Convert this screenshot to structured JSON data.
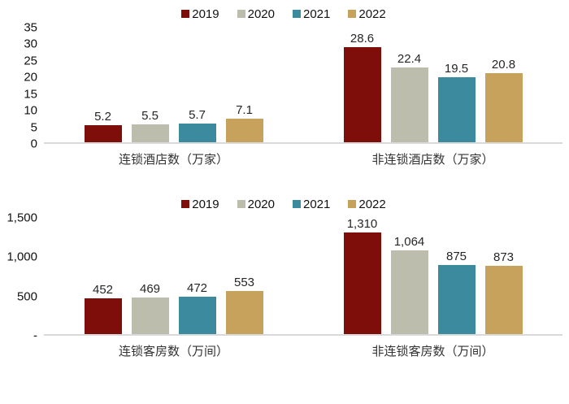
{
  "legend": [
    {
      "label": "2019",
      "color": "#7d0e09"
    },
    {
      "label": "2020",
      "color": "#bdbdae"
    },
    {
      "label": "2021",
      "color": "#3b8a9e"
    },
    {
      "label": "2022",
      "color": "#c6a25d"
    }
  ],
  "chart_data": [
    {
      "type": "bar",
      "title": "",
      "categories": [
        "连锁酒店数（万家）",
        "非连锁酒店数（万家）"
      ],
      "series": [
        {
          "name": "2019",
          "values": [
            5.2,
            28.6
          ],
          "labels": [
            "5.2",
            "28.6"
          ]
        },
        {
          "name": "2020",
          "values": [
            5.5,
            22.4
          ],
          "labels": [
            "5.5",
            "22.4"
          ]
        },
        {
          "name": "2021",
          "values": [
            5.7,
            19.5
          ],
          "labels": [
            "5.7",
            "19.5"
          ]
        },
        {
          "name": "2022",
          "values": [
            7.1,
            20.8
          ],
          "labels": [
            "7.1",
            "20.8"
          ]
        }
      ],
      "ylim": [
        0,
        35
      ],
      "yticks": [
        "35",
        "30",
        "25",
        "20",
        "15",
        "10",
        "5",
        "0"
      ],
      "grid": false,
      "legend_position": "top-center"
    },
    {
      "type": "bar",
      "title": "",
      "categories": [
        "连锁客房数（万间）",
        "非连锁客房数（万间）"
      ],
      "series": [
        {
          "name": "2019",
          "values": [
            452,
            1310
          ],
          "labels": [
            "452",
            "1,310"
          ]
        },
        {
          "name": "2020",
          "values": [
            469,
            1064
          ],
          "labels": [
            "469",
            "1,064"
          ]
        },
        {
          "name": "2021",
          "values": [
            472,
            875
          ],
          "labels": [
            "472",
            "875"
          ]
        },
        {
          "name": "2022",
          "values": [
            553,
            873
          ],
          "labels": [
            "553",
            "873"
          ]
        }
      ],
      "ylim": [
        0,
        1500
      ],
      "yticks": [
        "1,500",
        "1,000",
        "500",
        "-"
      ],
      "grid": false,
      "legend_position": "top-center"
    }
  ]
}
